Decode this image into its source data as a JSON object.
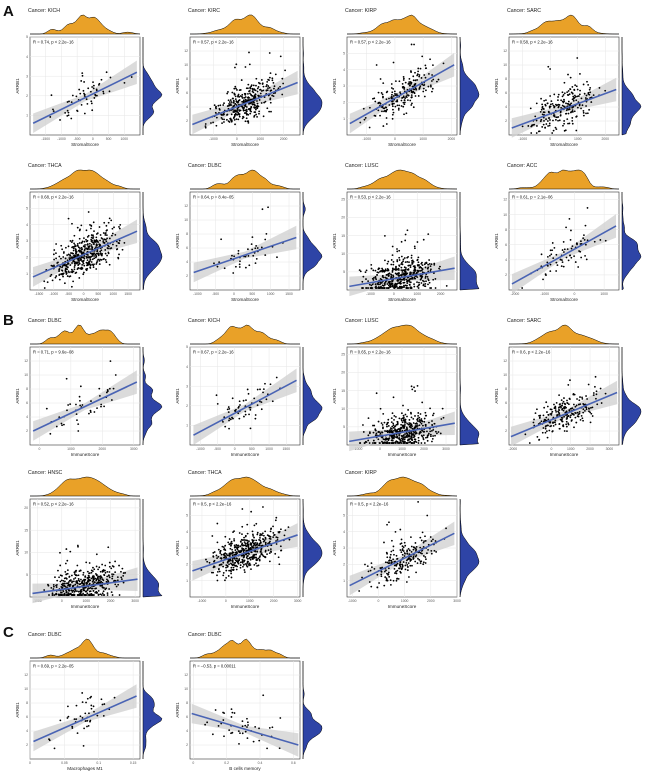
{
  "figure": {
    "panel_labels": [
      "A",
      "B",
      "C"
    ],
    "colors": {
      "top_density": "#E9A128",
      "right_density": "#2E44A6",
      "regression_line": "#4A64B4",
      "confidence_band": "#CFCFCF",
      "points": "#000000"
    }
  },
  "chart_data": [
    {
      "type": "scatter",
      "panel": "A",
      "title": "Cancer: KICH",
      "stat": "R = 0.74, p < 2.2e−16",
      "xlabel": "StromalScore",
      "ylabel": "ARRB1",
      "xlim": [
        -2000,
        1500
      ],
      "ylim": [
        0,
        5
      ],
      "xticks": [
        -1500,
        -1000,
        -500,
        0,
        500,
        1000
      ],
      "yticks": [
        1,
        2,
        3,
        4,
        5
      ],
      "fit": {
        "x0": -1900,
        "y0": 0.6,
        "x1": 1400,
        "y1": 3.2
      },
      "seed": 11,
      "n": 60
    },
    {
      "type": "scatter",
      "panel": "A",
      "title": "Cancer: KIRC",
      "stat": "R = 0.57, p < 2.2e−16",
      "xlabel": "StromalScore",
      "ylabel": "ARRB1",
      "xlim": [
        -2000,
        2700
      ],
      "ylim": [
        0,
        14
      ],
      "xticks": [
        -1000,
        0,
        1000,
        2000
      ],
      "yticks": [
        2,
        4,
        6,
        8,
        10,
        12
      ],
      "fit": {
        "x0": -1900,
        "y0": 1.5,
        "x1": 2600,
        "y1": 7.5
      },
      "seed": 12,
      "n": 380
    },
    {
      "type": "scatter",
      "panel": "A",
      "title": "Cancer: KIRP",
      "stat": "R = 0.57, p < 2.2e−16",
      "xlabel": "StromalScore",
      "ylabel": "ARRB1",
      "xlim": [
        -1700,
        2200
      ],
      "ylim": [
        0,
        6
      ],
      "xticks": [
        -1000,
        0,
        1000,
        2000
      ],
      "yticks": [
        1,
        2,
        3,
        4,
        5
      ],
      "fit": {
        "x0": -1600,
        "y0": 0.7,
        "x1": 2100,
        "y1": 4.3
      },
      "seed": 13,
      "n": 230
    },
    {
      "type": "scatter",
      "panel": "A",
      "title": "Cancer: SARC",
      "stat": "R = 0.58, p < 2.2e−16",
      "xlabel": "StromalScore",
      "ylabel": "ARRB1",
      "xlim": [
        -1500,
        2500
      ],
      "ylim": [
        0,
        14
      ],
      "xticks": [
        -1000,
        0,
        1000,
        2000
      ],
      "yticks": [
        2,
        4,
        6,
        8,
        10,
        12
      ],
      "fit": {
        "x0": -1400,
        "y0": 1.0,
        "x1": 2400,
        "y1": 6.5
      },
      "seed": 14,
      "n": 240
    },
    {
      "type": "scatter",
      "panel": "A",
      "title": "Cancer: THCA",
      "stat": "R = 0.68, p < 2.2e−16",
      "xlabel": "StromalScore",
      "ylabel": "ARRB1",
      "xlim": [
        -1800,
        1900
      ],
      "ylim": [
        0,
        6
      ],
      "xticks": [
        -1500,
        -1000,
        -500,
        0,
        500,
        1000,
        1500
      ],
      "yticks": [
        1,
        2,
        3,
        4,
        5
      ],
      "fit": {
        "x0": -1700,
        "y0": 0.8,
        "x1": 1800,
        "y1": 3.6
      },
      "seed": 15,
      "n": 480
    },
    {
      "type": "scatter",
      "panel": "A",
      "title": "Cancer: DLBC",
      "stat": "R = 0.64, p = 8.4e−05",
      "xlabel": "StromalScore",
      "ylabel": "ARRB1",
      "xlim": [
        -1200,
        1800
      ],
      "ylim": [
        0,
        14
      ],
      "xticks": [
        -1000,
        -500,
        0,
        500,
        1000,
        1500
      ],
      "yticks": [
        2,
        4,
        6,
        8,
        10,
        12
      ],
      "fit": {
        "x0": -1100,
        "y0": 2.5,
        "x1": 1700,
        "y1": 7.5
      },
      "seed": 16,
      "n": 45
    },
    {
      "type": "scatter",
      "panel": "A",
      "title": "Cancer: LUSC",
      "stat": "R = 0.53, p < 2.2e−16",
      "xlabel": "StromalScore",
      "ylabel": "ARRB1",
      "xlim": [
        -2000,
        2700
      ],
      "ylim": [
        0,
        27
      ],
      "xticks": [
        -1000,
        0,
        1000,
        2000
      ],
      "yticks": [
        5,
        10,
        15,
        20,
        25
      ],
      "fit": {
        "x0": -1900,
        "y0": 1.0,
        "x1": 2600,
        "y1": 6.0
      },
      "seed": 17,
      "n": 480
    },
    {
      "type": "scatter",
      "panel": "A",
      "title": "Cancer: ACC",
      "stat": "R = 0.61, p = 2.1e−06",
      "xlabel": "StromalScore",
      "ylabel": "ARRB1",
      "xlim": [
        -2200,
        1500
      ],
      "ylim": [
        0,
        13
      ],
      "xticks": [
        -2000,
        -1000,
        0,
        1000
      ],
      "yticks": [
        2,
        4,
        6,
        8,
        10,
        12
      ],
      "fit": {
        "x0": -2100,
        "y0": 0.8,
        "x1": 1400,
        "y1": 8.5
      },
      "seed": 18,
      "n": 75
    },
    {
      "type": "scatter",
      "panel": "B",
      "title": "Cancer: DLBC",
      "stat": "R = 0.71, p = 9.6e−08",
      "xlabel": "ImmuneScore",
      "ylabel": "ARRB1",
      "xlim": [
        -300,
        3200
      ],
      "ylim": [
        0,
        14
      ],
      "xticks": [
        0,
        1000,
        2000,
        3000
      ],
      "yticks": [
        2,
        4,
        6,
        8,
        10,
        12
      ],
      "fit": {
        "x0": -200,
        "y0": 2.0,
        "x1": 3100,
        "y1": 9.0
      },
      "seed": 21,
      "n": 45
    },
    {
      "type": "scatter",
      "panel": "B",
      "title": "Cancer: KICH",
      "stat": "R = 0.67, p = 2.2e−16",
      "xlabel": "ImmuneScore",
      "ylabel": "ARRB1",
      "xlim": [
        -1300,
        1900
      ],
      "ylim": [
        0,
        5
      ],
      "xticks": [
        -1000,
        -500,
        0,
        500,
        1000,
        1500
      ],
      "yticks": [
        1,
        2,
        3,
        4,
        5
      ],
      "fit": {
        "x0": -1200,
        "y0": 0.5,
        "x1": 1800,
        "y1": 3.3
      },
      "seed": 22,
      "n": 60
    },
    {
      "type": "scatter",
      "panel": "B",
      "title": "Cancer: LUSC",
      "stat": "R = 0.65, p < 2.2e−16",
      "xlabel": "ImmuneScore",
      "ylabel": "ARRB1",
      "xlim": [
        -1500,
        3500
      ],
      "ylim": [
        0,
        27
      ],
      "xticks": [
        -1000,
        0,
        1000,
        2000,
        3000
      ],
      "yticks": [
        5,
        10,
        15,
        20,
        25
      ],
      "fit": {
        "x0": -1400,
        "y0": 1.0,
        "x1": 3400,
        "y1": 6.0
      },
      "seed": 23,
      "n": 480
    },
    {
      "type": "scatter",
      "panel": "B",
      "title": "Cancer: SARC",
      "stat": "R = 0.6, p < 2.2e−16",
      "xlabel": "ImmuneScore",
      "ylabel": "ARRB1",
      "xlim": [
        -2200,
        3500
      ],
      "ylim": [
        0,
        14
      ],
      "xticks": [
        -2000,
        0,
        1000,
        2000,
        3000
      ],
      "yticks": [
        2,
        4,
        6,
        8,
        10,
        12
      ],
      "fit": {
        "x0": -2100,
        "y0": 1.2,
        "x1": 3400,
        "y1": 7.5
      },
      "seed": 24,
      "n": 240
    },
    {
      "type": "scatter",
      "panel": "B",
      "title": "Cancer: HNSC",
      "stat": "R = 0.52, p < 2.2e−16",
      "xlabel": "ImmuneScore",
      "ylabel": "ARRB1",
      "xlim": [
        -1300,
        3200
      ],
      "ylim": [
        0,
        22
      ],
      "xticks": [
        -1000,
        0,
        1000,
        2000,
        3000
      ],
      "yticks": [
        5,
        10,
        15,
        20
      ],
      "fit": {
        "x0": -1200,
        "y0": 0.8,
        "x1": 3100,
        "y1": 4.0
      },
      "seed": 25,
      "n": 480
    },
    {
      "type": "scatter",
      "panel": "B",
      "title": "Cancer: THCA",
      "stat": "R = 0.5, p < 2.2e−16",
      "xlabel": "ImmuneScore",
      "ylabel": "ARRB1",
      "xlim": [
        -1500,
        3100
      ],
      "ylim": [
        0,
        6
      ],
      "xticks": [
        -1000,
        0,
        1000,
        2000,
        3000
      ],
      "yticks": [
        1,
        2,
        3,
        4,
        5
      ],
      "fit": {
        "x0": -1400,
        "y0": 1.6,
        "x1": 3000,
        "y1": 3.8
      },
      "seed": 26,
      "n": 480
    },
    {
      "type": "scatter",
      "panel": "B",
      "title": "Cancer: KIRP",
      "stat": "R = 0.5, p < 2.2e−16",
      "xlabel": "ImmuneScore",
      "ylabel": "ARRB1",
      "xlim": [
        -1200,
        3000
      ],
      "ylim": [
        0,
        6
      ],
      "xticks": [
        -1000,
        0,
        1000,
        2000,
        3000
      ],
      "yticks": [
        1,
        2,
        3,
        4,
        5
      ],
      "fit": {
        "x0": -1100,
        "y0": 0.7,
        "x1": 2900,
        "y1": 3.9
      },
      "seed": 27,
      "n": 230
    },
    {
      "type": "scatter",
      "panel": "C",
      "title": "Cancer: DLBC",
      "stat": "R = 0.69, p = 2.2e−05",
      "xlabel": "Macrophages M1",
      "ylabel": "ARRB1",
      "xlim": [
        0,
        0.16
      ],
      "ylim": [
        0,
        14
      ],
      "xticks": [
        0.0,
        0.05,
        0.1,
        0.15
      ],
      "yticks": [
        2,
        4,
        6,
        8,
        10,
        12
      ],
      "fit": {
        "x0": 0.005,
        "y0": 2.5,
        "x1": 0.155,
        "y1": 9.0
      },
      "seed": 31,
      "n": 45
    },
    {
      "type": "scatter",
      "panel": "C",
      "title": "Cancer: DLBC",
      "stat": "R = −0.53, p = 0.00011",
      "xlabel": "B cells memory",
      "ylabel": "ARRB1",
      "xlim": [
        -0.02,
        0.64
      ],
      "ylim": [
        0,
        14
      ],
      "xticks": [
        0.0,
        0.2,
        0.4,
        0.6
      ],
      "yticks": [
        2,
        4,
        6,
        8,
        10,
        12
      ],
      "fit": {
        "x0": -0.01,
        "y0": 6.5,
        "x1": 0.63,
        "y1": 2.0
      },
      "seed": 32,
      "n": 45
    }
  ]
}
